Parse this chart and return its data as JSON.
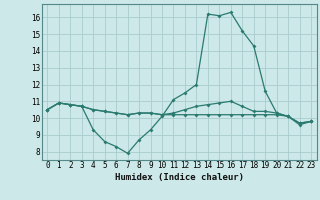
{
  "title": "",
  "xlabel": "Humidex (Indice chaleur)",
  "bg_color": "#cce8e8",
  "grid_color": "#aacccc",
  "line_color": "#2a7a70",
  "xlim": [
    -0.5,
    23.5
  ],
  "ylim": [
    7.5,
    16.8
  ],
  "yticks": [
    8,
    9,
    10,
    11,
    12,
    13,
    14,
    15,
    16
  ],
  "xticks": [
    0,
    1,
    2,
    3,
    4,
    5,
    6,
    7,
    8,
    9,
    10,
    11,
    12,
    13,
    14,
    15,
    16,
    17,
    18,
    19,
    20,
    21,
    22,
    23
  ],
  "line1_x": [
    0,
    1,
    2,
    3,
    4,
    5,
    6,
    7,
    8,
    9,
    10,
    11,
    12,
    13,
    14,
    15,
    16,
    17,
    18,
    19,
    20,
    21,
    22,
    23
  ],
  "line1_y": [
    10.5,
    10.9,
    10.8,
    10.7,
    9.3,
    8.6,
    8.3,
    7.9,
    8.7,
    9.3,
    10.1,
    11.1,
    11.5,
    12.0,
    16.2,
    16.1,
    16.3,
    15.2,
    14.3,
    11.6,
    10.3,
    10.1,
    9.6,
    9.8
  ],
  "line2_x": [
    0,
    1,
    2,
    3,
    4,
    5,
    6,
    7,
    8,
    9,
    10,
    11,
    12,
    13,
    14,
    15,
    16,
    17,
    18,
    19,
    20,
    21,
    22,
    23
  ],
  "line2_y": [
    10.5,
    10.9,
    10.8,
    10.7,
    10.5,
    10.4,
    10.3,
    10.2,
    10.3,
    10.3,
    10.2,
    10.2,
    10.2,
    10.2,
    10.2,
    10.2,
    10.2,
    10.2,
    10.2,
    10.2,
    10.2,
    10.1,
    9.7,
    9.8
  ],
  "line3_x": [
    0,
    1,
    2,
    3,
    4,
    5,
    6,
    7,
    8,
    9,
    10,
    11,
    12,
    13,
    14,
    15,
    16,
    17,
    18,
    19,
    20,
    21,
    22,
    23
  ],
  "line3_y": [
    10.5,
    10.9,
    10.8,
    10.7,
    10.5,
    10.4,
    10.3,
    10.2,
    10.3,
    10.3,
    10.2,
    10.3,
    10.5,
    10.7,
    10.8,
    10.9,
    11.0,
    10.7,
    10.4,
    10.4,
    10.3,
    10.1,
    9.7,
    9.8
  ],
  "marker_size": 2.0,
  "line_width": 0.9,
  "tick_fontsize": 5.5,
  "xlabel_fontsize": 6.5
}
